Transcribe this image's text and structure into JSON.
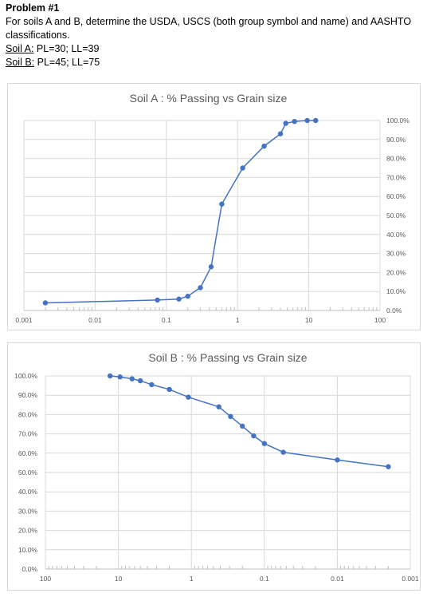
{
  "problem": {
    "title": "Problem #1",
    "prompt_line1": "For soils A and B, determine the USDA, USCS (both group symbol and name) and AASHTO",
    "prompt_line2": "classifications.",
    "soil_a_label": "Soil A:",
    "soil_a_limits": " PL=30; LL=39",
    "soil_b_label": "Soil B:",
    "soil_b_limits": " PL=45; LL=75"
  },
  "colors": {
    "series": "#4472c4",
    "grid": "#d9d9d9",
    "axis_text": "#595959",
    "title_text": "#595959"
  },
  "chart_data": [
    {
      "id": "soil-a",
      "type": "scatter",
      "title": "Soil A : % Passing vs Grain size",
      "x_scale": "log",
      "xlim": [
        0.001,
        100
      ],
      "x_reversed": false,
      "x_ticks": [
        {
          "value": 0.001,
          "label": "0.001"
        },
        {
          "value": 0.01,
          "label": "0.01"
        },
        {
          "value": 0.1,
          "label": "0.1"
        },
        {
          "value": 1,
          "label": "1"
        },
        {
          "value": 10,
          "label": "10"
        },
        {
          "value": 100,
          "label": "100"
        }
      ],
      "ylim": [
        0,
        1
      ],
      "y_ticks": [
        "0.0%",
        "10.0%",
        "20.0%",
        "30.0%",
        "40.0%",
        "50.0%",
        "60.0%",
        "70.0%",
        "80.0%",
        "90.0%",
        "100.0%"
      ],
      "y_axis_side": "right",
      "grid": true,
      "legend": "none",
      "points": [
        {
          "x": 0.002,
          "y": 0.04
        },
        {
          "x": 0.075,
          "y": 0.055
        },
        {
          "x": 0.15,
          "y": 0.06
        },
        {
          "x": 0.2,
          "y": 0.075
        },
        {
          "x": 0.3,
          "y": 0.12
        },
        {
          "x": 0.425,
          "y": 0.23
        },
        {
          "x": 0.6,
          "y": 0.56
        },
        {
          "x": 1.18,
          "y": 0.75
        },
        {
          "x": 2.36,
          "y": 0.865
        },
        {
          "x": 4.0,
          "y": 0.93
        },
        {
          "x": 4.75,
          "y": 0.985
        },
        {
          "x": 6.3,
          "y": 0.995
        },
        {
          "x": 9.5,
          "y": 1.0
        },
        {
          "x": 12.5,
          "y": 1.0
        }
      ]
    },
    {
      "id": "soil-b",
      "type": "scatter",
      "title": "Soil B : % Passing vs Grain size",
      "x_scale": "log",
      "xlim": [
        0.001,
        100
      ],
      "x_reversed": true,
      "x_ticks": [
        {
          "value": 100,
          "label": "100"
        },
        {
          "value": 10,
          "label": "10"
        },
        {
          "value": 1,
          "label": "1"
        },
        {
          "value": 0.1,
          "label": "0.1"
        },
        {
          "value": 0.01,
          "label": "0.01"
        },
        {
          "value": 0.001,
          "label": "0.001"
        }
      ],
      "ylim": [
        0,
        1
      ],
      "y_ticks": [
        "0.0%",
        "10.0%",
        "20.0%",
        "30.0%",
        "40.0%",
        "50.0%",
        "60.0%",
        "70.0%",
        "80.0%",
        "90.0%",
        "100.0%"
      ],
      "y_axis_side": "left",
      "grid": true,
      "legend": "none",
      "points": [
        {
          "x": 13.0,
          "y": 1.0
        },
        {
          "x": 9.5,
          "y": 0.995
        },
        {
          "x": 6.5,
          "y": 0.985
        },
        {
          "x": 5.0,
          "y": 0.975
        },
        {
          "x": 3.5,
          "y": 0.955
        },
        {
          "x": 2.0,
          "y": 0.93
        },
        {
          "x": 1.1,
          "y": 0.89
        },
        {
          "x": 0.42,
          "y": 0.84
        },
        {
          "x": 0.29,
          "y": 0.79
        },
        {
          "x": 0.2,
          "y": 0.74
        },
        {
          "x": 0.14,
          "y": 0.69
        },
        {
          "x": 0.1,
          "y": 0.65
        },
        {
          "x": 0.055,
          "y": 0.605
        },
        {
          "x": 0.01,
          "y": 0.565
        },
        {
          "x": 0.002,
          "y": 0.53
        }
      ]
    }
  ]
}
